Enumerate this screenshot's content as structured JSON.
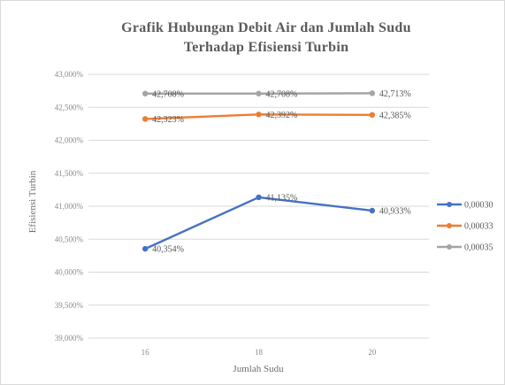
{
  "chart_data": {
    "type": "line",
    "title_line1": "Grafik Hubungan Debit Air dan Jumlah Sudu",
    "title_line2": "Terhadap Efisiensi Turbin",
    "xlabel": "Jumlah Sudu",
    "ylabel": "Efisiensi Turbin",
    "categories": [
      "16",
      "18",
      "20"
    ],
    "ylim": [
      39.0,
      43.0
    ],
    "yticks": [
      39.0,
      39.5,
      40.0,
      40.5,
      41.0,
      41.5,
      42.0,
      42.5,
      43.0
    ],
    "ytick_labels": [
      "39,000%",
      "39,500%",
      "40,000%",
      "40,500%",
      "41,000%",
      "41,500%",
      "42,000%",
      "42,500%",
      "43,000%"
    ],
    "grid": true,
    "legend_position": "right",
    "series": [
      {
        "name": "0,00030",
        "color": "#4472c4",
        "values": [
          40.354,
          41.135,
          40.933
        ],
        "labels": [
          "40,354%",
          "41,135%",
          "40,933%"
        ]
      },
      {
        "name": "0,00033",
        "color": "#ed7d31",
        "values": [
          42.323,
          42.392,
          42.385
        ],
        "labels": [
          "42,323%",
          "42,392%",
          "42,385%"
        ]
      },
      {
        "name": "0,00035",
        "color": "#a5a5a5",
        "values": [
          42.708,
          42.708,
          42.713
        ],
        "labels": [
          "42,708%",
          "42,708%",
          "42,713%"
        ]
      }
    ]
  }
}
